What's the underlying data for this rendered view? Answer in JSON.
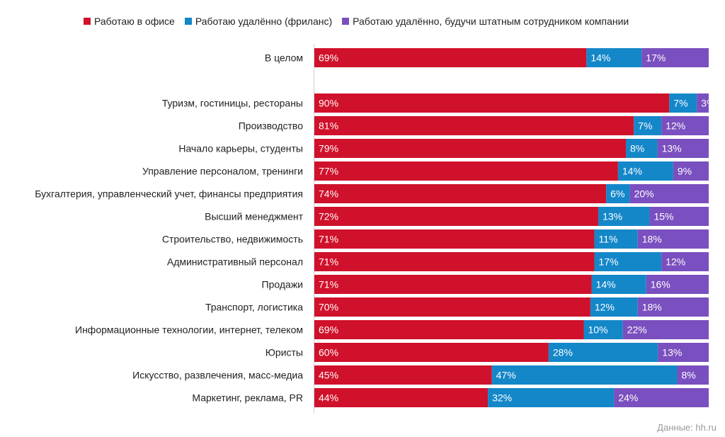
{
  "colors": {
    "office": "#d0112b",
    "freelance": "#1487c9",
    "remote_staff": "#7a4fbf"
  },
  "legend": [
    {
      "name": "Работаю в офисе",
      "color": "#d0112b"
    },
    {
      "name": "Работаю удалённо (фриланс)",
      "color": "#1487c9"
    },
    {
      "name": "Работаю удалённо, будучи штатным сотрудником компании",
      "color": "#7a4fbf"
    }
  ],
  "source": "Данные: hh.ru",
  "chart_data": {
    "type": "bar",
    "orientation": "horizontal",
    "stacked": true,
    "normalized_percent": true,
    "xlim": [
      0,
      100
    ],
    "legend_position": "top",
    "grid": false,
    "title": "",
    "xlabel": "",
    "ylabel": "",
    "categories": [
      "В целом",
      "Туризм, гостиницы, рестораны",
      "Производство",
      "Начало карьеры, студенты",
      "Управление персоналом, тренинги",
      "Бухгалтерия, управленческий учет, финансы предприятия",
      "Высший менеджмент",
      "Строительство, недвижимость",
      "Административный персонал",
      "Продажи",
      "Транспорт, логистика",
      "Информационные технологии, интернет, телеком",
      "Юристы",
      "Искусство, развлечения, масс-медиа",
      "Маркетинг, реклама, PR"
    ],
    "series": [
      {
        "name": "Работаю в офисе",
        "values": [
          69,
          90,
          81,
          79,
          77,
          74,
          72,
          71,
          71,
          71,
          70,
          69,
          60,
          45,
          44
        ]
      },
      {
        "name": "Работаю удалённо (фриланс)",
        "values": [
          14,
          7,
          7,
          8,
          14,
          6,
          13,
          11,
          17,
          14,
          12,
          10,
          28,
          47,
          32
        ]
      },
      {
        "name": "Работаю удалённо, будучи штатным сотрудником компании",
        "values": [
          17,
          3,
          12,
          13,
          9,
          20,
          15,
          18,
          12,
          16,
          18,
          22,
          13,
          8,
          24
        ]
      }
    ]
  }
}
